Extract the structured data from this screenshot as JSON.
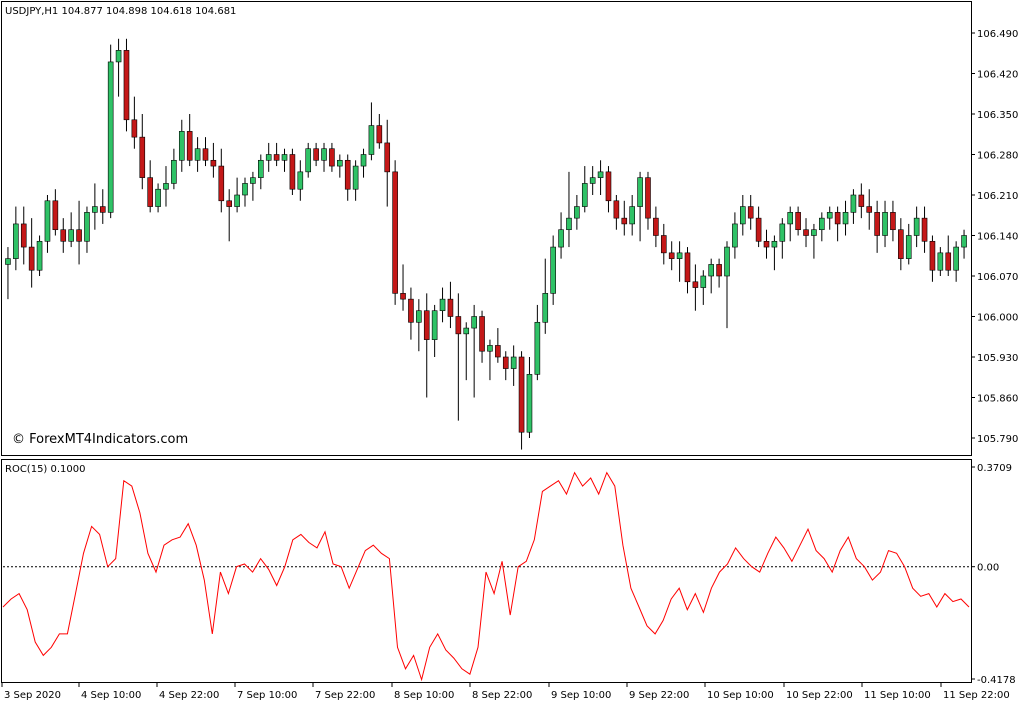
{
  "window": {
    "symbol_header": "USDJPY,H1  104.877 104.898 104.618 104.681",
    "watermark": "© ForexMT4Indicators.com"
  },
  "indicator": {
    "label": "ROC(15) 0.1000"
  },
  "colors": {
    "background": "#ffffff",
    "frame": "#000000",
    "bull_candle": "#2fc266",
    "bear_candle": "#c41818",
    "roc_line": "#ff0000",
    "zero_line": "#000000",
    "text": "#000000"
  },
  "chart_data": [
    {
      "type": "candlestick",
      "title": "USDJPY,H1",
      "yticks": [
        "106.490",
        "106.420",
        "106.350",
        "106.280",
        "106.210",
        "106.140",
        "106.070",
        "106.000",
        "105.930",
        "105.860",
        "105.790"
      ],
      "ylim": [
        105.775,
        106.52
      ],
      "candles": [
        [
          106.09,
          106.12,
          106.03,
          106.1
        ],
        [
          106.1,
          106.19,
          106.08,
          106.16
        ],
        [
          106.16,
          106.19,
          106.09,
          106.12
        ],
        [
          106.12,
          106.17,
          106.05,
          106.08
        ],
        [
          106.08,
          106.14,
          106.07,
          106.13
        ],
        [
          106.13,
          106.21,
          106.11,
          106.2
        ],
        [
          106.2,
          106.22,
          106.14,
          106.15
        ],
        [
          106.15,
          106.17,
          106.11,
          106.13
        ],
        [
          106.13,
          106.18,
          106.12,
          106.15
        ],
        [
          106.15,
          106.2,
          106.09,
          106.13
        ],
        [
          106.13,
          106.19,
          106.11,
          106.18
        ],
        [
          106.18,
          106.23,
          106.15,
          106.19
        ],
        [
          106.19,
          106.22,
          106.16,
          106.18
        ],
        [
          106.18,
          106.47,
          106.17,
          106.44
        ],
        [
          106.44,
          106.48,
          106.38,
          106.46
        ],
        [
          106.46,
          106.48,
          106.32,
          106.34
        ],
        [
          106.34,
          106.38,
          106.29,
          106.31
        ],
        [
          106.31,
          106.35,
          106.22,
          106.24
        ],
        [
          106.24,
          106.27,
          106.18,
          106.19
        ],
        [
          106.19,
          106.23,
          106.18,
          106.22
        ],
        [
          106.22,
          106.26,
          106.19,
          106.23
        ],
        [
          106.23,
          106.29,
          106.22,
          106.27
        ],
        [
          106.27,
          106.34,
          106.25,
          106.32
        ],
        [
          106.32,
          106.35,
          106.26,
          106.27
        ],
        [
          106.27,
          106.31,
          106.25,
          106.29
        ],
        [
          106.29,
          106.31,
          106.26,
          106.27
        ],
        [
          106.27,
          106.3,
          106.24,
          106.26
        ],
        [
          106.26,
          106.29,
          106.18,
          106.2
        ],
        [
          106.2,
          106.22,
          106.13,
          106.19
        ],
        [
          106.19,
          106.24,
          106.18,
          106.21
        ],
        [
          106.21,
          106.24,
          106.19,
          106.23
        ],
        [
          106.23,
          106.25,
          106.2,
          106.24
        ],
        [
          106.24,
          106.28,
          106.22,
          106.27
        ],
        [
          106.27,
          106.3,
          106.25,
          106.28
        ],
        [
          106.28,
          106.3,
          106.26,
          106.27
        ],
        [
          106.27,
          106.29,
          106.25,
          106.28
        ],
        [
          106.28,
          106.29,
          106.21,
          106.22
        ],
        [
          106.22,
          106.27,
          106.2,
          106.25
        ],
        [
          106.25,
          106.3,
          106.24,
          106.29
        ],
        [
          106.29,
          106.3,
          106.26,
          106.27
        ],
        [
          106.27,
          106.3,
          106.25,
          106.29
        ],
        [
          106.29,
          106.3,
          106.25,
          106.26
        ],
        [
          106.26,
          106.28,
          106.24,
          106.27
        ],
        [
          106.27,
          106.28,
          106.2,
          106.22
        ],
        [
          106.22,
          106.27,
          106.2,
          106.26
        ],
        [
          106.26,
          106.29,
          106.24,
          106.28
        ],
        [
          106.28,
          106.37,
          106.27,
          106.33
        ],
        [
          106.33,
          106.35,
          106.29,
          106.3
        ],
        [
          106.3,
          106.34,
          106.19,
          106.25
        ],
        [
          106.25,
          106.27,
          106.02,
          106.04
        ],
        [
          106.04,
          106.09,
          106.01,
          106.03
        ],
        [
          106.03,
          106.05,
          105.96,
          105.99
        ],
        [
          105.99,
          106.03,
          105.94,
          106.01
        ],
        [
          106.01,
          106.04,
          105.86,
          105.96
        ],
        [
          105.96,
          106.02,
          105.93,
          106.01
        ],
        [
          106.01,
          106.05,
          105.99,
          106.03
        ],
        [
          106.03,
          106.06,
          105.98,
          106.0
        ],
        [
          106.0,
          106.04,
          105.82,
          105.97
        ],
        [
          105.97,
          105.99,
          105.89,
          105.98
        ],
        [
          105.98,
          106.02,
          105.86,
          106.0
        ],
        [
          106.0,
          106.01,
          105.92,
          105.94
        ],
        [
          105.94,
          105.96,
          105.89,
          105.95
        ],
        [
          105.95,
          105.98,
          105.92,
          105.93
        ],
        [
          105.93,
          105.94,
          105.89,
          105.91
        ],
        [
          105.91,
          105.95,
          105.88,
          105.93
        ],
        [
          105.93,
          105.94,
          105.77,
          105.8
        ],
        [
          105.8,
          105.93,
          105.79,
          105.9
        ],
        [
          105.9,
          106.02,
          105.89,
          105.99
        ],
        [
          105.99,
          106.1,
          105.97,
          106.04
        ],
        [
          106.04,
          106.14,
          106.02,
          106.12
        ],
        [
          106.12,
          106.18,
          106.1,
          106.15
        ],
        [
          106.15,
          106.25,
          106.12,
          106.17
        ],
        [
          106.17,
          106.21,
          106.15,
          106.19
        ],
        [
          106.19,
          106.26,
          106.18,
          106.23
        ],
        [
          106.23,
          106.26,
          106.21,
          106.24
        ],
        [
          106.24,
          106.27,
          106.21,
          106.25
        ],
        [
          106.25,
          106.26,
          106.18,
          106.2
        ],
        [
          106.2,
          106.21,
          106.15,
          106.17
        ],
        [
          106.17,
          106.2,
          106.14,
          106.16
        ],
        [
          106.16,
          106.21,
          106.14,
          106.19
        ],
        [
          106.19,
          106.25,
          106.13,
          106.24
        ],
        [
          106.24,
          106.25,
          106.15,
          106.17
        ],
        [
          106.17,
          106.19,
          106.12,
          106.14
        ],
        [
          106.14,
          106.16,
          106.09,
          106.11
        ],
        [
          106.11,
          106.13,
          106.08,
          106.1
        ],
        [
          106.1,
          106.13,
          106.06,
          106.11
        ],
        [
          106.11,
          106.12,
          106.04,
          106.06
        ],
        [
          106.06,
          106.09,
          106.01,
          106.05
        ],
        [
          106.05,
          106.08,
          106.02,
          106.07
        ],
        [
          106.07,
          106.1,
          106.04,
          106.09
        ],
        [
          106.09,
          106.1,
          106.05,
          106.07
        ],
        [
          106.07,
          106.13,
          105.98,
          106.12
        ],
        [
          106.12,
          106.18,
          106.1,
          106.16
        ],
        [
          106.16,
          106.21,
          106.14,
          106.19
        ],
        [
          106.19,
          106.21,
          106.15,
          106.17
        ],
        [
          106.17,
          106.19,
          106.12,
          106.13
        ],
        [
          106.13,
          106.15,
          106.1,
          106.12
        ],
        [
          106.12,
          106.14,
          106.08,
          106.13
        ],
        [
          106.13,
          106.17,
          106.1,
          106.16
        ],
        [
          106.16,
          106.19,
          106.13,
          106.18
        ],
        [
          106.18,
          106.19,
          106.14,
          106.15
        ],
        [
          106.15,
          106.17,
          106.12,
          106.14
        ],
        [
          106.14,
          106.16,
          106.1,
          106.15
        ],
        [
          106.15,
          106.18,
          106.13,
          106.17
        ],
        [
          106.17,
          106.19,
          106.15,
          106.18
        ],
        [
          106.18,
          106.19,
          106.13,
          106.16
        ],
        [
          106.16,
          106.2,
          106.14,
          106.18
        ],
        [
          106.18,
          106.22,
          106.16,
          106.21
        ],
        [
          106.21,
          106.23,
          106.17,
          106.19
        ],
        [
          106.19,
          106.22,
          106.15,
          106.18
        ],
        [
          106.18,
          106.2,
          106.11,
          106.14
        ],
        [
          106.14,
          106.2,
          106.12,
          106.18
        ],
        [
          106.18,
          106.2,
          106.13,
          106.15
        ],
        [
          106.15,
          106.17,
          106.08,
          106.1
        ],
        [
          106.1,
          106.16,
          106.09,
          106.14
        ],
        [
          106.14,
          106.19,
          106.12,
          106.17
        ],
        [
          106.17,
          106.19,
          106.11,
          106.13
        ],
        [
          106.13,
          106.14,
          106.06,
          106.08
        ],
        [
          106.08,
          106.12,
          106.07,
          106.11
        ],
        [
          106.11,
          106.14,
          106.07,
          106.08
        ],
        [
          106.08,
          106.13,
          106.06,
          106.12
        ],
        [
          106.12,
          106.15,
          106.1,
          106.14
        ]
      ]
    },
    {
      "type": "line",
      "title": "ROC(15) 0.1000",
      "yticks": [
        "0.3709",
        "0.00",
        "-0.4178"
      ],
      "ylim": [
        -0.4178,
        0.3709
      ],
      "zero_line": 0.0,
      "x_labels": [
        "3 Sep 2020",
        "4 Sep 10:00",
        "4 Sep 22:00",
        "7 Sep 10:00",
        "7 Sep 22:00",
        "8 Sep 10:00",
        "8 Sep 22:00",
        "9 Sep 10:00",
        "9 Sep 22:00",
        "10 Sep 10:00",
        "10 Sep 22:00",
        "11 Sep 10:00",
        "11 Sep 22:00"
      ],
      "series": [
        {
          "values": [
            -0.15,
            -0.12,
            -0.1,
            -0.16,
            -0.28,
            -0.33,
            -0.3,
            -0.25,
            -0.25,
            -0.1,
            0.05,
            0.15,
            0.12,
            0.0,
            0.03,
            0.32,
            0.3,
            0.2,
            0.05,
            -0.02,
            0.08,
            0.1,
            0.11,
            0.16,
            0.08,
            -0.05,
            -0.25,
            -0.02,
            -0.1,
            0.0,
            0.01,
            -0.02,
            0.03,
            -0.01,
            -0.07,
            0.0,
            0.1,
            0.12,
            0.09,
            0.07,
            0.13,
            0.01,
            0.0,
            -0.08,
            -0.01,
            0.06,
            0.08,
            0.05,
            0.03,
            -0.3,
            -0.38,
            -0.33,
            -0.42,
            -0.3,
            -0.25,
            -0.31,
            -0.34,
            -0.38,
            -0.4,
            -0.3,
            -0.02,
            -0.1,
            0.02,
            -0.18,
            0.0,
            0.02,
            0.1,
            0.28,
            0.3,
            0.32,
            0.27,
            0.35,
            0.3,
            0.33,
            0.27,
            0.35,
            0.3,
            0.08,
            -0.08,
            -0.15,
            -0.22,
            -0.25,
            -0.2,
            -0.12,
            -0.08,
            -0.16,
            -0.1,
            -0.17,
            -0.08,
            -0.02,
            0.01,
            0.07,
            0.03,
            0.0,
            -0.02,
            0.05,
            0.11,
            0.07,
            0.02,
            0.08,
            0.14,
            0.06,
            0.03,
            -0.02,
            0.06,
            0.11,
            0.03,
            0.0,
            -0.05,
            -0.02,
            0.06,
            0.05,
            0.0,
            -0.08,
            -0.11,
            -0.1,
            -0.15,
            -0.1,
            -0.13,
            -0.12,
            -0.15
          ]
        }
      ]
    }
  ]
}
